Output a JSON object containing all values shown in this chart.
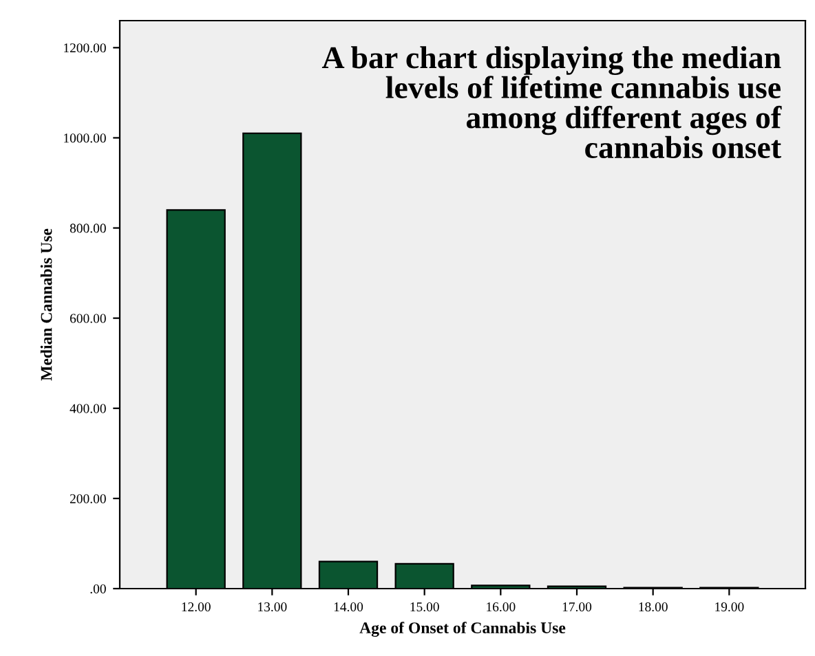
{
  "chart_data": {
    "type": "bar",
    "title": "A bar chart displaying the median\nlevels of lifetime cannabis use\namong different ages of\ncannabis onset",
    "xlabel": "Age of Onset of Cannabis Use",
    "ylabel": "Median Cannabis Use",
    "categories": [
      "12.00",
      "13.00",
      "14.00",
      "15.00",
      "16.00",
      "17.00",
      "18.00",
      "19.00"
    ],
    "values": [
      840,
      1010,
      60,
      55,
      7,
      5,
      2,
      2
    ],
    "color": "#0b5530",
    "ylim": [
      0,
      1260
    ],
    "yticks": [
      {
        "value": 0,
        "label": ".00"
      },
      {
        "value": 200,
        "label": "200.00"
      },
      {
        "value": 400,
        "label": "400.00"
      },
      {
        "value": 600,
        "label": "600.00"
      },
      {
        "value": 800,
        "label": "800.00"
      },
      {
        "value": 1000,
        "label": "1000.00"
      },
      {
        "value": 1200,
        "label": "1200.00"
      }
    ],
    "grid": false,
    "legend": false
  }
}
